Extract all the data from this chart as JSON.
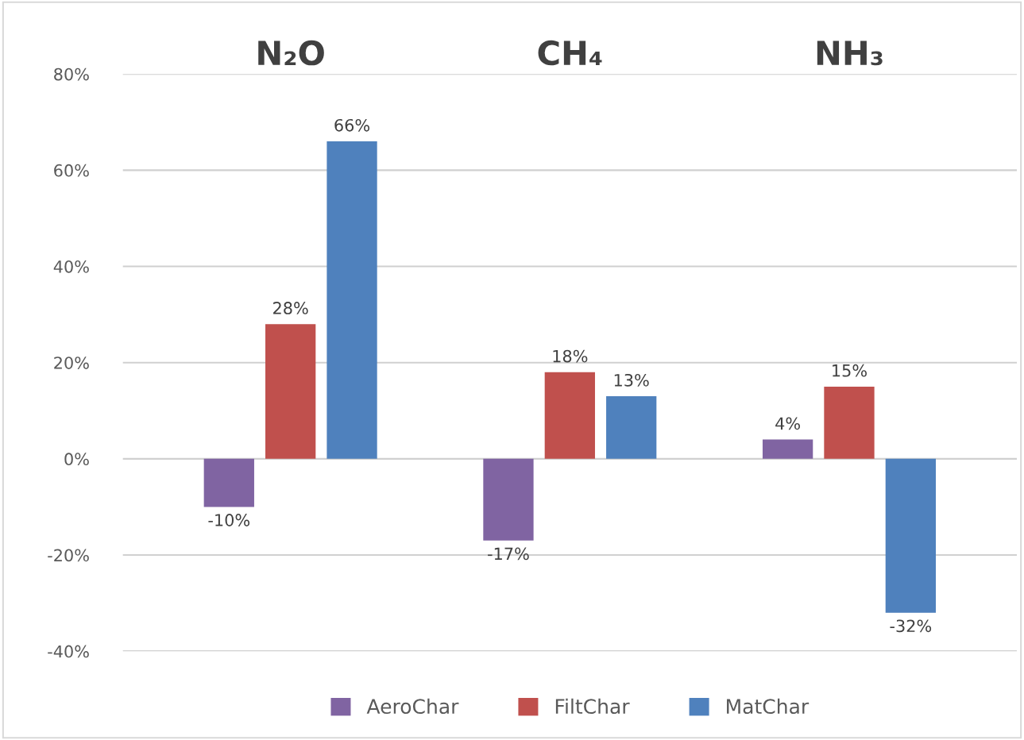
{
  "chart_data": {
    "type": "bar",
    "categories": [
      "N₂O",
      "CH₄",
      "NH₃"
    ],
    "series": [
      {
        "name": "AeroChar",
        "color": "#8064a2",
        "values": [
          -10,
          -17,
          4
        ],
        "value_labels": [
          "-10%",
          "-17%",
          "4%"
        ]
      },
      {
        "name": "FiltChar",
        "color": "#c0504d",
        "values": [
          28,
          18,
          15
        ],
        "value_labels": [
          "28%",
          "18%",
          "15%"
        ]
      },
      {
        "name": "MatChar",
        "color": "#4f81bd",
        "values": [
          66,
          13,
          -32
        ],
        "value_labels": [
          "66%",
          "13%",
          "-32%"
        ]
      }
    ],
    "ylim": [
      -40,
      80
    ],
    "yticks": [
      {
        "value": -40,
        "label": "-40%"
      },
      {
        "value": -20,
        "label": "-20%"
      },
      {
        "value": 0,
        "label": "0%"
      },
      {
        "value": 20,
        "label": "20%"
      },
      {
        "value": 40,
        "label": "40%"
      },
      {
        "value": 60,
        "label": "60%"
      },
      {
        "value": 80,
        "label": "80%"
      }
    ],
    "grid": "y",
    "legend": "bottom"
  }
}
